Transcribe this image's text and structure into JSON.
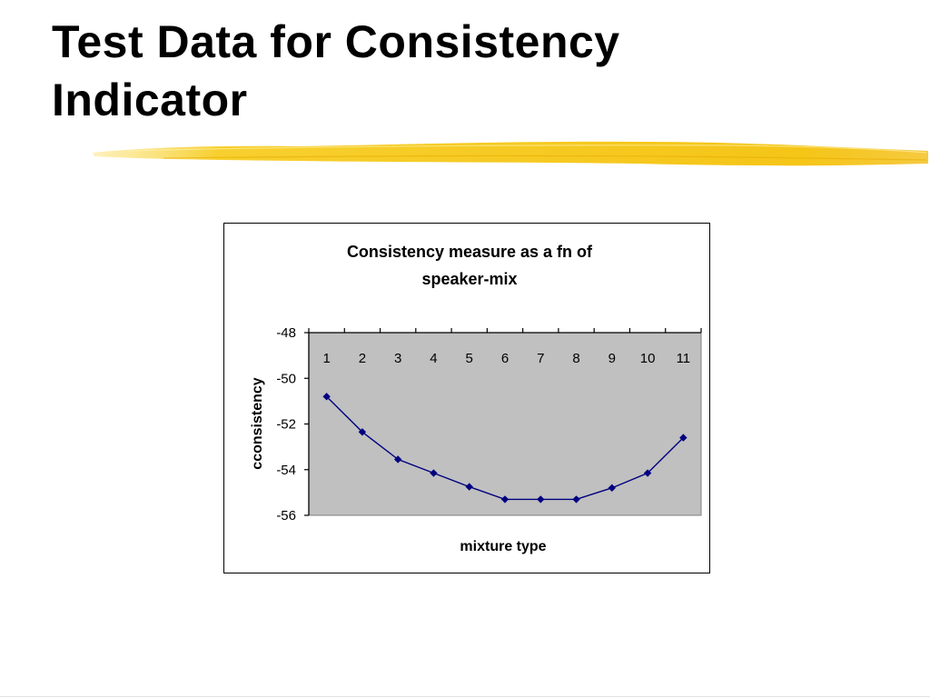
{
  "slide": {
    "title_line1": "Test Data for Consistency",
    "title_line2": "Indicator"
  },
  "colors": {
    "accent_brush": "#f5c518",
    "plot_background": "#c0c0c0",
    "series_color": "#000080"
  },
  "chart_data": {
    "type": "line",
    "title_line1": "Consistency measure as a fn of",
    "title_line2": "speaker-mix",
    "xlabel": "mixture type",
    "ylabel": "cconsistency",
    "categories": [
      "1",
      "2",
      "3",
      "4",
      "5",
      "6",
      "7",
      "8",
      "9",
      "10",
      "11"
    ],
    "series": [
      {
        "values": [
          -50.8,
          -52.35,
          -53.55,
          -54.15,
          -54.75,
          -55.3,
          -55.3,
          -55.3,
          -54.8,
          -54.15,
          -52.6
        ]
      }
    ],
    "yticks": [
      "-48",
      "-50",
      "-52",
      "-54",
      "-56"
    ],
    "ylim": [
      -56,
      -48
    ],
    "x_axis_position": "top",
    "grid": false,
    "legend": "none",
    "marker": "diamond"
  }
}
